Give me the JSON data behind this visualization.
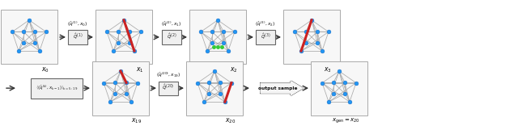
{
  "bg_color": "#ffffff",
  "node_color": "#2196F3",
  "edge_color": "#aaaaaa",
  "figsize": [
    6.4,
    1.56
  ],
  "dpi": 100
}
